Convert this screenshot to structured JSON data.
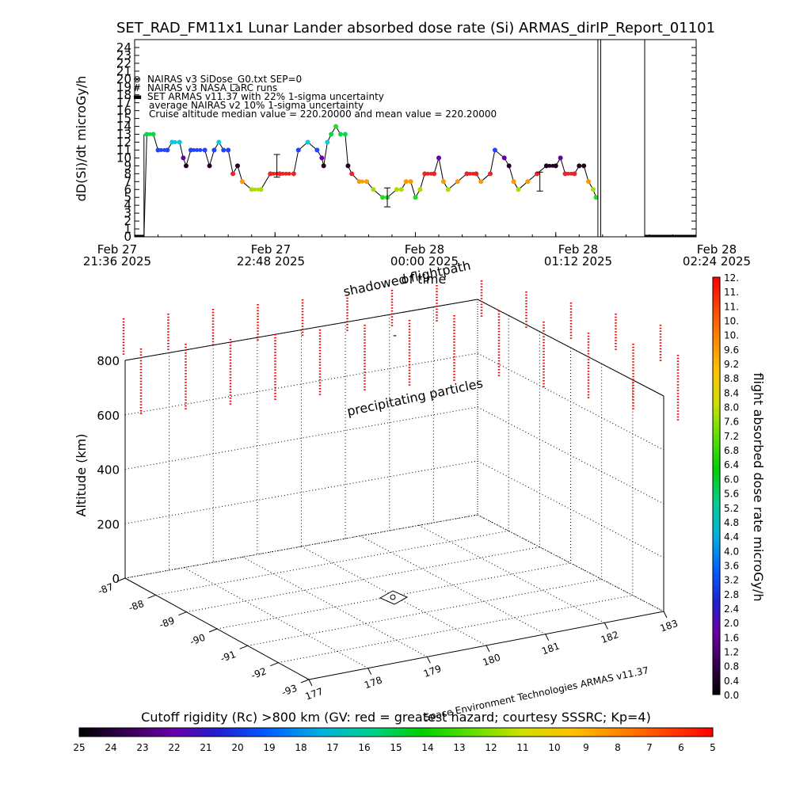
{
  "chart_data": [
    {
      "type": "scatter",
      "title": "SET_RAD_FM11x1  Lunar Lander absorbed dose rate (Si) ARMAS_dirIP_Report_01101",
      "ylabel": "dD(Si)/dt microGy/h",
      "ylim": [
        0,
        24
      ],
      "yticks": [
        "0",
        "1",
        "2",
        "3",
        "4",
        "5",
        "6",
        "7",
        "8",
        "9",
        "10",
        "11",
        "12",
        "13",
        "14",
        "15",
        "16",
        "17",
        "18",
        "19",
        "20",
        "21",
        "22",
        "23",
        "24"
      ],
      "x_ticks": [
        {
          "date": "Feb 27",
          "time": "21:36 2025"
        },
        {
          "date": "Feb 27",
          "time": "22:48 2025"
        },
        {
          "date": "Feb 28",
          "time": "00:00 2025"
        },
        {
          "date": "Feb 28",
          "time": "01:12 2025"
        },
        {
          "date": "Feb 28",
          "time": "02:24 2025"
        }
      ],
      "x_subtitle": "of time",
      "legend": [
        {
          "symbol": "⊗",
          "text": "NAIRAS v3 SiDose_G0.txt SEP=0",
          "color": "#000000"
        },
        {
          "symbol": "#",
          "text": "NAIRAS v3 NASA LaRC runs",
          "color": "#000000"
        },
        {
          "symbol": "▬",
          "text": "SET ARMAS v11.37 with 22% 1-sigma uncertainty",
          "color": "#0000ff"
        },
        {
          "symbol": "",
          "text": "average NAIRAS v2 10% 1-sigma uncertainty",
          "color": "#000000"
        },
        {
          "symbol": "",
          "text": "Cruise altitude median value = 220.20000 and mean value = 220.20000",
          "color": "#000000"
        }
      ],
      "legend_position": "top-left",
      "dose_series": [
        {
          "t": 0.0,
          "v": 0
        },
        {
          "t": 0.1,
          "v": 0
        },
        {
          "t": 0.13,
          "v": 13
        },
        {
          "t": 0.2,
          "v": 13
        },
        {
          "t": 0.25,
          "v": 11
        },
        {
          "t": 0.35,
          "v": 11
        },
        {
          "t": 0.4,
          "v": 12
        },
        {
          "t": 0.48,
          "v": 12
        },
        {
          "t": 0.52,
          "v": 10
        },
        {
          "t": 0.55,
          "v": 9
        },
        {
          "t": 0.6,
          "v": 11
        },
        {
          "t": 0.75,
          "v": 11
        },
        {
          "t": 0.8,
          "v": 9
        },
        {
          "t": 0.85,
          "v": 11
        },
        {
          "t": 0.9,
          "v": 12
        },
        {
          "t": 0.95,
          "v": 11
        },
        {
          "t": 1.0,
          "v": 11
        },
        {
          "t": 1.05,
          "v": 8
        },
        {
          "t": 1.1,
          "v": 9
        },
        {
          "t": 1.15,
          "v": 7
        },
        {
          "t": 1.25,
          "v": 6
        },
        {
          "t": 1.35,
          "v": 6
        },
        {
          "t": 1.45,
          "v": 8
        },
        {
          "t": 1.55,
          "v": 8
        },
        {
          "t": 1.7,
          "v": 8
        },
        {
          "t": 1.75,
          "v": 11
        },
        {
          "t": 1.85,
          "v": 12
        },
        {
          "t": 1.95,
          "v": 11
        },
        {
          "t": 2.0,
          "v": 10
        },
        {
          "t": 2.02,
          "v": 9
        },
        {
          "t": 2.06,
          "v": 12
        },
        {
          "t": 2.1,
          "v": 13
        },
        {
          "t": 2.15,
          "v": 14
        },
        {
          "t": 2.2,
          "v": 13
        },
        {
          "t": 2.25,
          "v": 13
        },
        {
          "t": 2.28,
          "v": 9
        },
        {
          "t": 2.32,
          "v": 8
        },
        {
          "t": 2.4,
          "v": 7
        },
        {
          "t": 2.48,
          "v": 7
        },
        {
          "t": 2.55,
          "v": 6
        },
        {
          "t": 2.65,
          "v": 5
        },
        {
          "t": 2.7,
          "v": 5
        },
        {
          "t": 2.8,
          "v": 6
        },
        {
          "t": 2.85,
          "v": 6
        },
        {
          "t": 2.9,
          "v": 7
        },
        {
          "t": 2.95,
          "v": 7
        },
        {
          "t": 3.0,
          "v": 5
        },
        {
          "t": 3.05,
          "v": 6
        },
        {
          "t": 3.1,
          "v": 8
        },
        {
          "t": 3.2,
          "v": 8
        },
        {
          "t": 3.25,
          "v": 10
        },
        {
          "t": 3.3,
          "v": 7
        },
        {
          "t": 3.35,
          "v": 6
        },
        {
          "t": 3.45,
          "v": 7
        },
        {
          "t": 3.55,
          "v": 8
        },
        {
          "t": 3.65,
          "v": 8
        },
        {
          "t": 3.7,
          "v": 7
        },
        {
          "t": 3.8,
          "v": 8
        },
        {
          "t": 3.85,
          "v": 11
        },
        {
          "t": 3.95,
          "v": 10
        },
        {
          "t": 4.0,
          "v": 9
        },
        {
          "t": 4.05,
          "v": 7
        },
        {
          "t": 4.1,
          "v": 6
        },
        {
          "t": 4.2,
          "v": 7
        },
        {
          "t": 4.3,
          "v": 8
        },
        {
          "t": 4.4,
          "v": 9
        },
        {
          "t": 4.5,
          "v": 9
        },
        {
          "t": 4.55,
          "v": 10
        },
        {
          "t": 4.6,
          "v": 8
        },
        {
          "t": 4.7,
          "v": 8
        },
        {
          "t": 4.75,
          "v": 9
        },
        {
          "t": 4.8,
          "v": 9
        },
        {
          "t": 4.85,
          "v": 7
        },
        {
          "t": 4.9,
          "v": 6
        },
        {
          "t": 4.93,
          "v": 5
        }
      ],
      "error_bars": [
        {
          "t": 1.52,
          "v": 9,
          "err": 1.2
        },
        {
          "t": 2.7,
          "v": 5,
          "err": 1.0
        },
        {
          "t": 4.33,
          "v": 7,
          "err": 1.0
        }
      ],
      "vertical_lines_t": [
        4.95,
        4.98,
        5.45
      ],
      "baseline_from_t": 5.45,
      "t_max": 6.0
    },
    {
      "type": "scatter3d",
      "annotations": [
        "shadowed flightpath",
        "precipitating particles"
      ],
      "zlabel": "Altitude (km)",
      "zticks": [
        "0",
        "200",
        "400",
        "600",
        "800"
      ],
      "lat_ticks": [
        "-87",
        "-88",
        "-89",
        "-90",
        "-91",
        "-92",
        "-93"
      ],
      "lon_ticks": [
        "177",
        "178",
        "179",
        "180",
        "181",
        "182",
        "183"
      ],
      "credit": "Space Environment Technologies ARMAS v11.37",
      "precipitation_columns": 26,
      "precipitation_color": "#dd0000"
    },
    {
      "type": "colorbar",
      "orientation": "vertical",
      "label": "flight absorbed dose rate microGy/h",
      "ticks": [
        "0.0",
        "0.4",
        "0.8",
        "1.2",
        "1.6",
        "2.0",
        "2.4",
        "2.8",
        "3.2",
        "3.6",
        "4.0",
        "4.4",
        "4.8",
        "5.2",
        "5.6",
        "6.0",
        "6.4",
        "6.8",
        "7.2",
        "7.6",
        "8.0",
        "8.4",
        "8.8",
        "9.2",
        "9.6",
        "10.",
        "10.",
        "11.",
        "11.",
        "12."
      ],
      "range": [
        0,
        12
      ]
    },
    {
      "type": "colorbar",
      "orientation": "horizontal",
      "label": "Cutoff rigidity (Rc) >800 km (GV: red = greatest hazard; courtesy SSSRC; Kp=4)",
      "ticks": [
        "25",
        "24",
        "23",
        "22",
        "21",
        "20",
        "19",
        "18",
        "17",
        "16",
        "15",
        "14",
        "13",
        "12",
        "11",
        "10",
        "9",
        "8",
        "7",
        "6",
        "5"
      ],
      "range": [
        25,
        5
      ]
    }
  ]
}
